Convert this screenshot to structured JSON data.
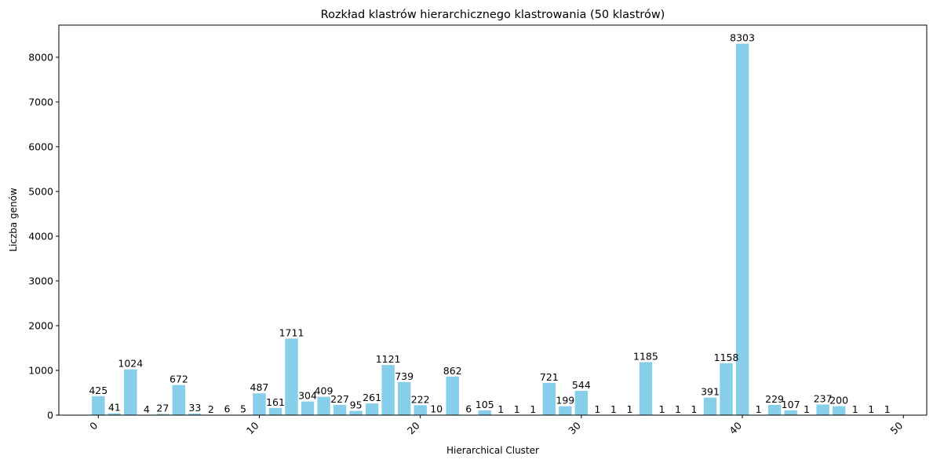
{
  "chart_data": {
    "type": "bar",
    "title": "Rozkład klastrów hierarchicznego klastrowania (50 klastrów)",
    "xlabel": "Hierarchical Cluster",
    "ylabel": "Liczba genów",
    "x": [
      0,
      1,
      2,
      3,
      4,
      5,
      6,
      7,
      8,
      9,
      10,
      11,
      12,
      13,
      14,
      15,
      16,
      17,
      18,
      19,
      20,
      21,
      22,
      23,
      24,
      25,
      26,
      27,
      28,
      29,
      30,
      31,
      32,
      33,
      34,
      35,
      36,
      37,
      38,
      39,
      40,
      41,
      42,
      43,
      44,
      45,
      46,
      47,
      48,
      49
    ],
    "values": [
      425,
      41,
      1024,
      4,
      27,
      672,
      33,
      2,
      6,
      5,
      487,
      161,
      1711,
      304,
      409,
      227,
      95,
      261,
      1121,
      739,
      222,
      10,
      862,
      6,
      105,
      1,
      1,
      1,
      721,
      199,
      544,
      1,
      1,
      1,
      1185,
      1,
      1,
      1,
      391,
      1158,
      8303,
      1,
      229,
      107,
      1,
      237,
      200,
      1,
      1,
      1
    ],
    "xlim": [
      -2.45,
      51.45
    ],
    "ylim": [
      0,
      8718
    ],
    "xticks": [
      0,
      10,
      20,
      30,
      40,
      50
    ],
    "yticks": [
      0,
      1000,
      2000,
      3000,
      4000,
      5000,
      6000,
      7000,
      8000
    ],
    "bar_color": "#87ceeb",
    "grid": false,
    "xtick_rotation": 45
  }
}
